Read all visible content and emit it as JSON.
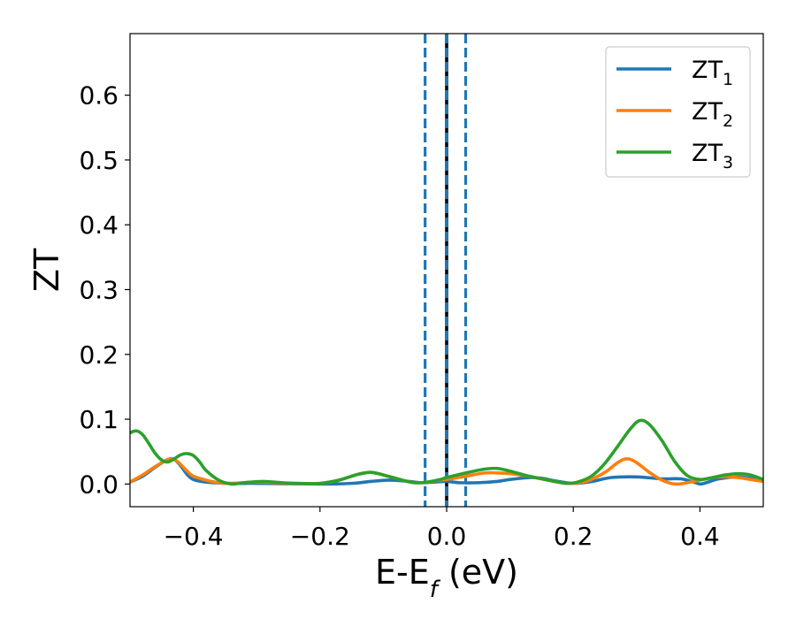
{
  "chart_data": {
    "type": "line",
    "xlabel_main": "E-E",
    "xlabel_sub": "f",
    "xlabel_unit": " (eV)",
    "ylabel": "ZT",
    "xlim": [
      -0.5,
      0.5
    ],
    "ylim": [
      -0.035,
      0.695
    ],
    "x_ticks": [
      -0.4,
      -0.2,
      0.0,
      0.2,
      0.4
    ],
    "x_tick_labels": [
      "−0.4",
      "−0.2",
      "0.0",
      "0.2",
      "0.4"
    ],
    "y_ticks": [
      0.0,
      0.1,
      0.2,
      0.3,
      0.4,
      0.5,
      0.6
    ],
    "y_tick_labels": [
      "0.0",
      "0.1",
      "0.2",
      "0.3",
      "0.4",
      "0.5",
      "0.6"
    ],
    "grid": false,
    "legend_position": "top-right",
    "vlines": [
      {
        "x": -0.034,
        "style": "dashed",
        "color": "#1f77b4"
      },
      {
        "x": 0.0,
        "style": "solid",
        "color": "#000000"
      },
      {
        "x": 0.0,
        "style": "dashed",
        "color": "#1f77b4"
      },
      {
        "x": 0.03,
        "style": "dashed",
        "color": "#1f77b4"
      }
    ],
    "series": [
      {
        "name_main": "ZT",
        "name_sub": "1",
        "color": "#1f77b4",
        "points": [
          [
            -0.5,
            0.003
          ],
          [
            -0.48,
            0.012
          ],
          [
            -0.46,
            0.026
          ],
          [
            -0.44,
            0.038
          ],
          [
            -0.43,
            0.038
          ],
          [
            -0.42,
            0.028
          ],
          [
            -0.41,
            0.015
          ],
          [
            -0.4,
            0.007
          ],
          [
            -0.38,
            0.003
          ],
          [
            -0.34,
            0.001
          ],
          [
            -0.3,
            0.001
          ],
          [
            -0.2,
            0.0
          ],
          [
            -0.15,
            0.001
          ],
          [
            -0.12,
            0.004
          ],
          [
            -0.09,
            0.006
          ],
          [
            -0.06,
            0.004
          ],
          [
            -0.04,
            0.002
          ],
          [
            -0.02,
            0.003
          ],
          [
            0.0,
            0.004
          ],
          [
            0.02,
            0.002
          ],
          [
            0.05,
            0.002
          ],
          [
            0.08,
            0.004
          ],
          [
            0.1,
            0.007
          ],
          [
            0.13,
            0.01
          ],
          [
            0.15,
            0.009
          ],
          [
            0.17,
            0.005
          ],
          [
            0.2,
            0.001
          ],
          [
            0.23,
            0.004
          ],
          [
            0.26,
            0.01
          ],
          [
            0.3,
            0.011
          ],
          [
            0.34,
            0.008
          ],
          [
            0.37,
            0.008
          ],
          [
            0.39,
            0.003
          ],
          [
            0.4,
            0.0
          ],
          [
            0.41,
            0.002
          ],
          [
            0.43,
            0.008
          ],
          [
            0.46,
            0.011
          ],
          [
            0.48,
            0.009
          ],
          [
            0.5,
            0.005
          ]
        ]
      },
      {
        "name_main": "ZT",
        "name_sub": "2",
        "color": "#ff7f0e",
        "points": [
          [
            -0.5,
            0.003
          ],
          [
            -0.48,
            0.014
          ],
          [
            -0.46,
            0.027
          ],
          [
            -0.44,
            0.038
          ],
          [
            -0.43,
            0.038
          ],
          [
            -0.42,
            0.03
          ],
          [
            -0.41,
            0.02
          ],
          [
            -0.4,
            0.012
          ],
          [
            -0.38,
            0.006
          ],
          [
            -0.36,
            0.002
          ],
          [
            -0.34,
            0.001
          ],
          [
            -0.3,
            0.003
          ],
          [
            -0.25,
            0.001
          ],
          [
            -0.2,
            0.001
          ],
          [
            -0.17,
            0.006
          ],
          [
            -0.14,
            0.015
          ],
          [
            -0.12,
            0.018
          ],
          [
            -0.1,
            0.014
          ],
          [
            -0.07,
            0.006
          ],
          [
            -0.05,
            0.002
          ],
          [
            -0.03,
            0.003
          ],
          [
            -0.01,
            0.006
          ],
          [
            0.0,
            0.007
          ],
          [
            0.03,
            0.012
          ],
          [
            0.06,
            0.017
          ],
          [
            0.08,
            0.017
          ],
          [
            0.1,
            0.016
          ],
          [
            0.13,
            0.012
          ],
          [
            0.16,
            0.006
          ],
          [
            0.19,
            0.001
          ],
          [
            0.22,
            0.004
          ],
          [
            0.25,
            0.018
          ],
          [
            0.27,
            0.033
          ],
          [
            0.285,
            0.039
          ],
          [
            0.3,
            0.033
          ],
          [
            0.32,
            0.018
          ],
          [
            0.34,
            0.006
          ],
          [
            0.36,
            0.0
          ],
          [
            0.38,
            0.002
          ],
          [
            0.41,
            0.008
          ],
          [
            0.43,
            0.011
          ],
          [
            0.46,
            0.01
          ],
          [
            0.48,
            0.007
          ],
          [
            0.5,
            0.004
          ]
        ]
      },
      {
        "name_main": "ZT",
        "name_sub": "3",
        "color": "#2ca02c",
        "points": [
          [
            -0.5,
            0.079
          ],
          [
            -0.49,
            0.082
          ],
          [
            -0.48,
            0.076
          ],
          [
            -0.47,
            0.062
          ],
          [
            -0.46,
            0.047
          ],
          [
            -0.45,
            0.037
          ],
          [
            -0.44,
            0.034
          ],
          [
            -0.43,
            0.039
          ],
          [
            -0.42,
            0.045
          ],
          [
            -0.41,
            0.047
          ],
          [
            -0.4,
            0.044
          ],
          [
            -0.39,
            0.034
          ],
          [
            -0.38,
            0.021
          ],
          [
            -0.36,
            0.006
          ],
          [
            -0.34,
            0.0
          ],
          [
            -0.32,
            0.002
          ],
          [
            -0.29,
            0.004
          ],
          [
            -0.26,
            0.002
          ],
          [
            -0.23,
            0.001
          ],
          [
            -0.2,
            0.001
          ],
          [
            -0.17,
            0.006
          ],
          [
            -0.14,
            0.015
          ],
          [
            -0.12,
            0.018
          ],
          [
            -0.1,
            0.014
          ],
          [
            -0.07,
            0.006
          ],
          [
            -0.05,
            0.002
          ],
          [
            -0.03,
            0.003
          ],
          [
            -0.01,
            0.007
          ],
          [
            0.0,
            0.01
          ],
          [
            0.03,
            0.017
          ],
          [
            0.06,
            0.023
          ],
          [
            0.08,
            0.024
          ],
          [
            0.1,
            0.02
          ],
          [
            0.13,
            0.012
          ],
          [
            0.16,
            0.006
          ],
          [
            0.19,
            0.001
          ],
          [
            0.21,
            0.004
          ],
          [
            0.23,
            0.013
          ],
          [
            0.25,
            0.032
          ],
          [
            0.27,
            0.058
          ],
          [
            0.29,
            0.085
          ],
          [
            0.305,
            0.098
          ],
          [
            0.32,
            0.092
          ],
          [
            0.34,
            0.067
          ],
          [
            0.36,
            0.035
          ],
          [
            0.38,
            0.013
          ],
          [
            0.4,
            0.007
          ],
          [
            0.42,
            0.01
          ],
          [
            0.44,
            0.014
          ],
          [
            0.46,
            0.016
          ],
          [
            0.48,
            0.014
          ],
          [
            0.5,
            0.007
          ]
        ]
      }
    ]
  }
}
